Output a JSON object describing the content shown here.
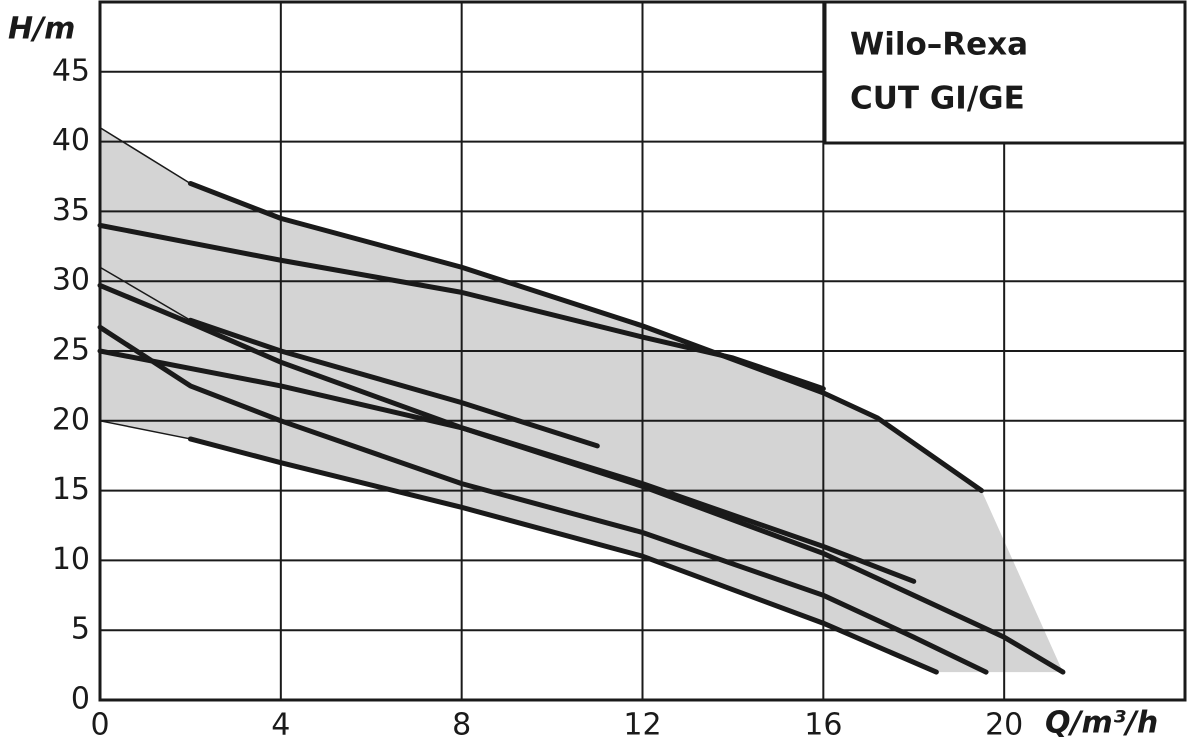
{
  "chart_data": {
    "type": "line",
    "title": [
      "Wilo–Rexa",
      "CUT GI/GE"
    ],
    "ylabel": "H/m",
    "xlabel": "Q/m³/h",
    "xlim": [
      0,
      24
    ],
    "ylim": [
      0,
      50
    ],
    "xticks": [
      0,
      4,
      8,
      12,
      16,
      20
    ],
    "yticks": [
      0,
      5,
      10,
      15,
      20,
      25,
      30,
      35,
      40,
      45
    ],
    "grid": true,
    "area": {
      "color": "#d4d4d4",
      "x": [
        0,
        2,
        4,
        8,
        12,
        16,
        17.2,
        19.5,
        21.3,
        18.5,
        16,
        12,
        8,
        4,
        2,
        0
      ],
      "values": [
        41,
        37,
        34.5,
        31,
        26.8,
        22,
        20.2,
        15,
        2,
        2,
        5.5,
        10.3,
        13.8,
        17,
        18.7,
        20
      ]
    },
    "series": [
      {
        "color": "#1a1a1a",
        "width": 1.5,
        "x": [
          0,
          2
        ],
        "values": [
          41,
          37
        ]
      },
      {
        "color": "#1a1a1a",
        "width": 1.5,
        "x": [
          0,
          2
        ],
        "values": [
          31,
          27.2
        ]
      },
      {
        "color": "#1a1a1a",
        "width": 1.5,
        "x": [
          0,
          2
        ],
        "values": [
          20,
          18.7
        ]
      },
      {
        "color": "#1a1a1a",
        "width": 5,
        "x": [
          2,
          4,
          8,
          12,
          16,
          17.2,
          19.5
        ],
        "values": [
          37,
          34.5,
          31,
          26.8,
          22,
          20.2,
          15
        ]
      },
      {
        "color": "#1a1a1a",
        "width": 5,
        "x": [
          0,
          4,
          8,
          12,
          14,
          16
        ],
        "values": [
          34,
          31.5,
          29.2,
          26,
          24.5,
          22.3
        ]
      },
      {
        "color": "#1a1a1a",
        "width": 5,
        "x": [
          2,
          4,
          8,
          11
        ],
        "values": [
          27.2,
          25,
          21.3,
          18.2
        ]
      },
      {
        "color": "#1a1a1a",
        "width": 5,
        "x": [
          0,
          2,
          4,
          8,
          12,
          16,
          18
        ],
        "values": [
          29.7,
          27,
          24.2,
          19.5,
          15.5,
          11,
          8.5
        ]
      },
      {
        "color": "#1a1a1a",
        "width": 5,
        "x": [
          0,
          4,
          8,
          12,
          16,
          18,
          20,
          21.3
        ],
        "values": [
          25,
          22.5,
          19.5,
          15.3,
          10.5,
          7.5,
          4.5,
          2
        ]
      },
      {
        "color": "#1a1a1a",
        "width": 5,
        "x": [
          0,
          2,
          4,
          8,
          12,
          16,
          18,
          19.6
        ],
        "values": [
          26.7,
          22.5,
          20,
          15.5,
          12,
          7.5,
          4.5,
          2
        ]
      },
      {
        "color": "#1a1a1a",
        "width": 5,
        "x": [
          2,
          4,
          8,
          12,
          16,
          18.5
        ],
        "values": [
          18.7,
          17,
          13.8,
          10.3,
          5.5,
          2
        ]
      }
    ]
  }
}
